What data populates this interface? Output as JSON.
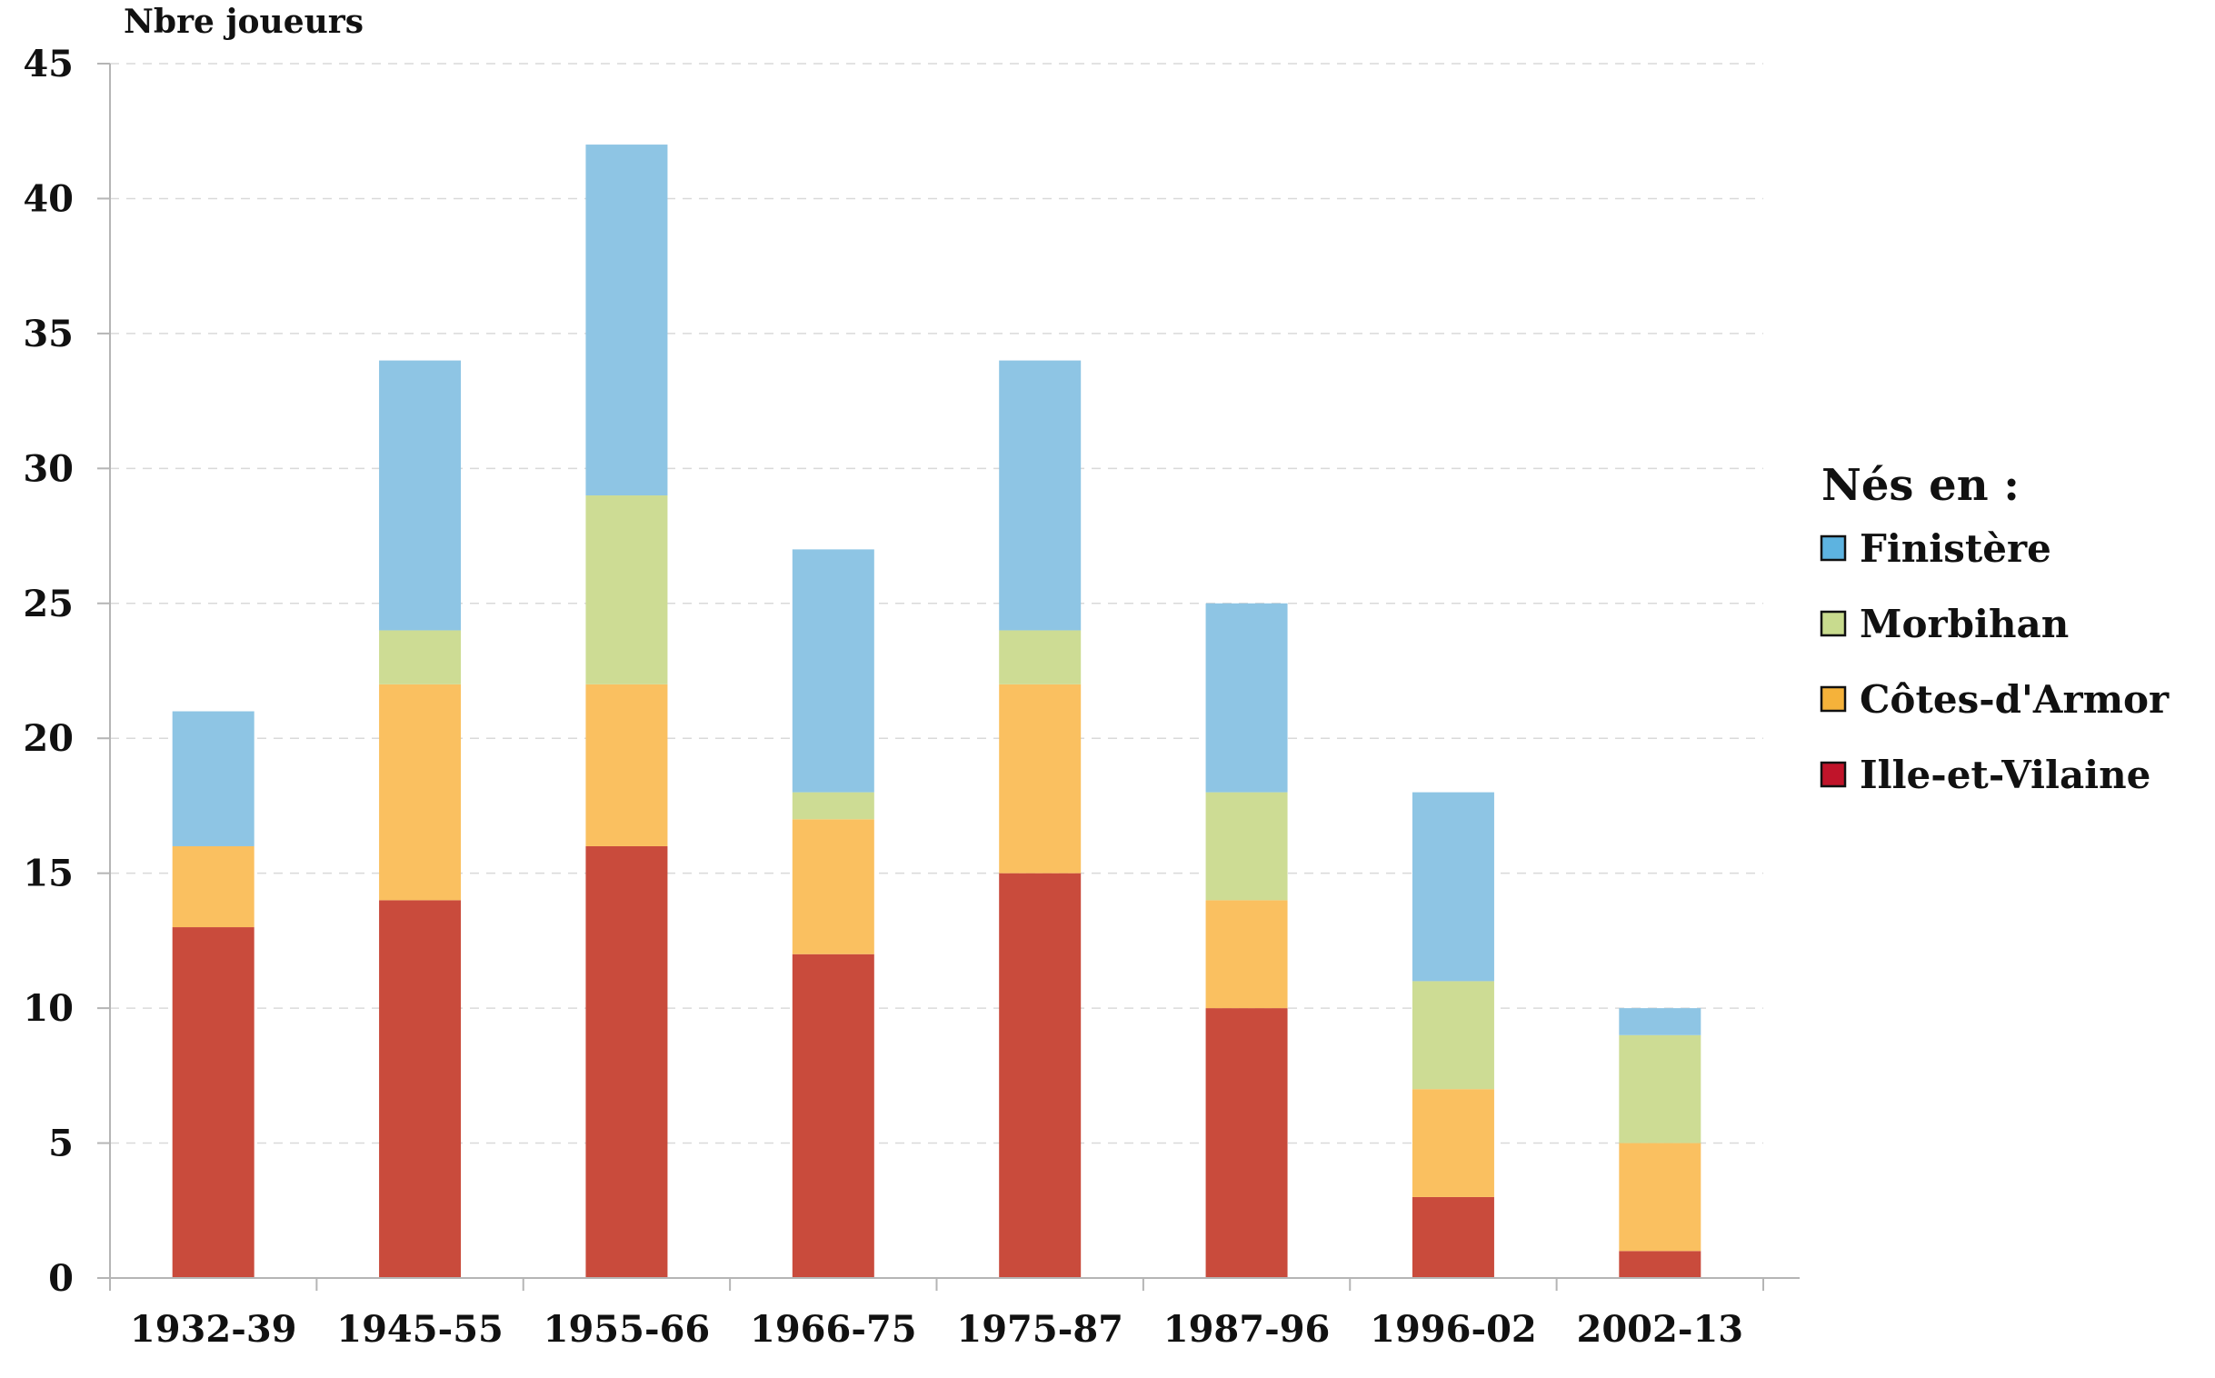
{
  "chart_data": {
    "type": "bar",
    "stacked": true,
    "title": "",
    "xlabel": "",
    "ylabel": "Nbre joueurs",
    "ylim": [
      0,
      45
    ],
    "yticks": [
      0,
      5,
      10,
      15,
      20,
      25,
      30,
      35,
      40,
      45
    ],
    "grid": true,
    "categories": [
      "1932-39",
      "1945-55",
      "1955-66",
      "1966-75",
      "1975-87",
      "1987-96",
      "1996-02",
      "2002-13"
    ],
    "legend_title": "Nés en :",
    "legend_position": "right",
    "series": [
      {
        "name": "Ille-et-Vilaine",
        "color": "#c94b3c",
        "legend_color": "#c0142a",
        "values": [
          13,
          14,
          16,
          12,
          15,
          10,
          3,
          1
        ]
      },
      {
        "name": "Côtes-d'Armor",
        "color": "#fac060",
        "legend_color": "#f5b23a",
        "values": [
          3,
          8,
          6,
          5,
          7,
          4,
          4,
          4
        ]
      },
      {
        "name": "Morbihan",
        "color": "#cddc94",
        "legend_color": "#c8db8e",
        "values": [
          0,
          2,
          7,
          1,
          2,
          4,
          4,
          4
        ]
      },
      {
        "name": "Finistère",
        "color": "#8ec5e4",
        "legend_color": "#5db3e0",
        "values": [
          5,
          10,
          13,
          9,
          10,
          7,
          7,
          1
        ]
      }
    ]
  }
}
